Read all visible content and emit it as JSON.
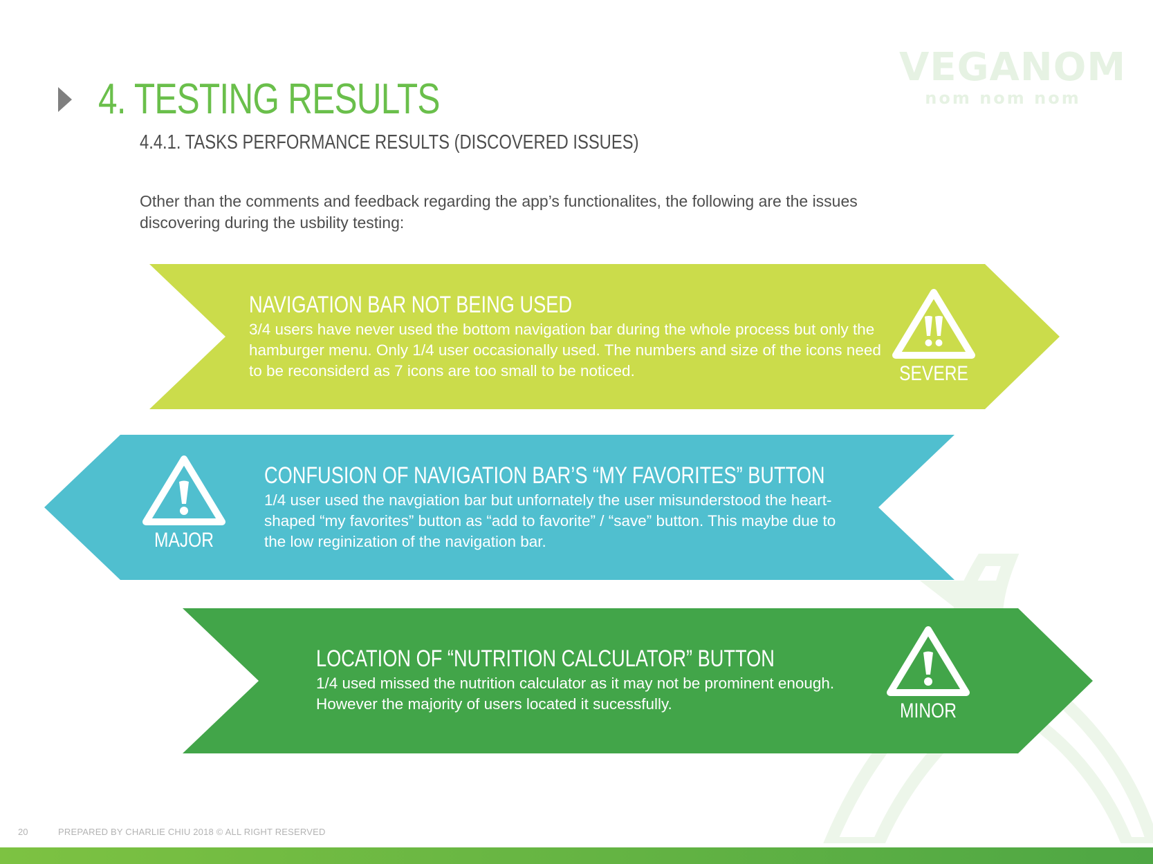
{
  "logo": {
    "main": "VEGANOM",
    "sub": "nom nom nom"
  },
  "header": {
    "title": "4. TESTING RESULTS",
    "subtitle": "4.4.1. TASKS PERFORMANCE RESULTS (DISCOVERED ISSUES)",
    "intro": "Other than the comments and feedback regarding the app’s functionalites, the following are the issues discovering during the usbility testing:"
  },
  "issues": [
    {
      "heading": "NAVIGATION BAR NOT BEING USED",
      "body": "3/4 users have never used the bottom navigation bar during the whole process but only the hamburger menu. Only 1/4 user occasionally used. The numbers and size of the icons need to be reconsiderd as 7 icons are too small to be noticed.",
      "severity": "SEVERE",
      "icon": "double-exclamation-warning-icon",
      "color": "#cbdc4b"
    },
    {
      "heading": "CONFUSION OF NAVIGATION BAR’S “MY FAVORITES” BUTTON",
      "body": "1/4 user used the navgiation bar but unfornately the user misunderstood the heart-shaped “my favorites” button as “add to favorite” / “save” button. This maybe due to the low reginization of the navigation bar.",
      "severity": "MAJOR",
      "icon": "exclamation-warning-icon",
      "color": "#50bfcf"
    },
    {
      "heading": "LOCATION OF “NUTRITION CALCULATOR” BUTTON",
      "body": "1/4 used missed the nutrition calculator as it may not be prominent enough. However the majority of users located it sucessfully.",
      "severity": "MINOR",
      "icon": "exclamation-warning-icon",
      "color": "#42a549"
    }
  ],
  "footer": {
    "page_number": "20",
    "text": "PREPARED BY CHARLIE CHIU 2018  © ALL RIGHT RESERVED"
  }
}
